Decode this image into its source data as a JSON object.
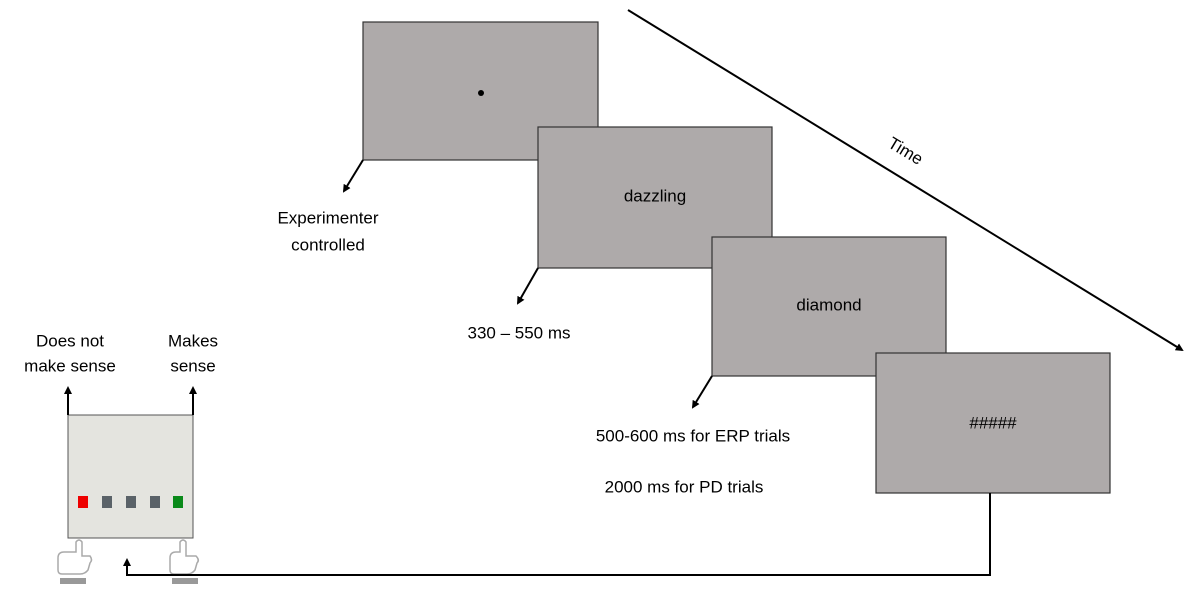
{
  "time_label": "Time",
  "screens": [
    "dazzling",
    "diamond",
    "#####"
  ],
  "durations": [
    [
      "Experimenter",
      "controlled"
    ],
    [
      "330 – 550 ms"
    ],
    [
      "500-600 ms for ERP trials",
      "2000 ms for PD trials"
    ]
  ],
  "response_box": {
    "left_label": [
      "Does not",
      "make sense"
    ],
    "right_label": [
      "Makes",
      "sense"
    ]
  }
}
